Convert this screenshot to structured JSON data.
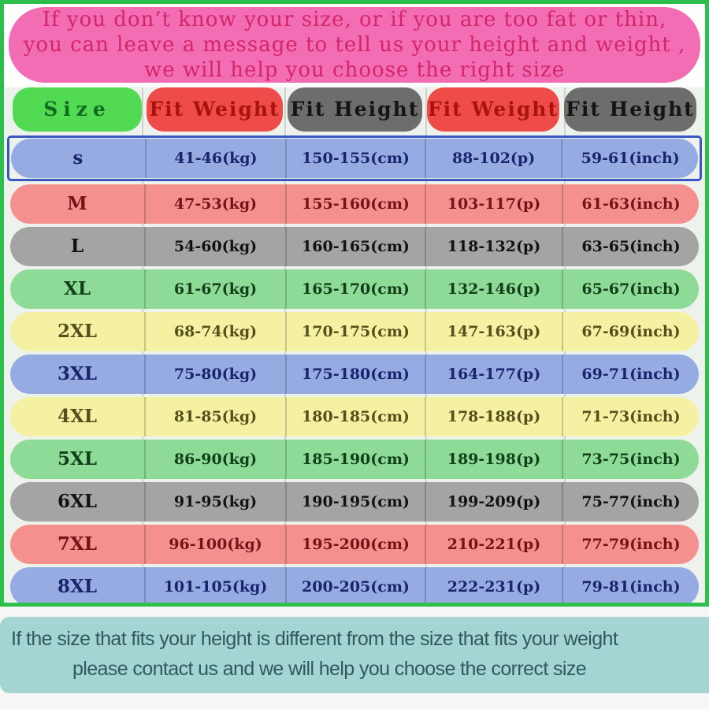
{
  "banner": {
    "lines": [
      "If you don’t know your size, or if you are too fat or thin,",
      "you can leave a message to tell us your height and weight ,",
      "we will help you choose the right size"
    ]
  },
  "table": {
    "headers": [
      {
        "label": "Size",
        "color": "green"
      },
      {
        "label": "Fit Weight",
        "color": "red"
      },
      {
        "label": "Fit Height",
        "color": "gray"
      },
      {
        "label": "Fit Weight",
        "color": "red"
      },
      {
        "label": "Fit Height",
        "color": "gray"
      }
    ],
    "selected_row": "s",
    "rows": [
      {
        "size": "s",
        "fit_weight_kg": "41-46(kg)",
        "fit_height_cm": "150-155(cm)",
        "fit_weight_p": "88-102(p)",
        "fit_height_inch": "59-61(inch)",
        "color": "blue"
      },
      {
        "size": "M",
        "fit_weight_kg": "47-53(kg)",
        "fit_height_cm": "155-160(cm)",
        "fit_weight_p": "103-117(p)",
        "fit_height_inch": "61-63(inch)",
        "color": "pink"
      },
      {
        "size": "L",
        "fit_weight_kg": "54-60(kg)",
        "fit_height_cm": "160-165(cm)",
        "fit_weight_p": "118-132(p)",
        "fit_height_inch": "63-65(inch)",
        "color": "gray"
      },
      {
        "size": "XL",
        "fit_weight_kg": "61-67(kg)",
        "fit_height_cm": "165-170(cm)",
        "fit_weight_p": "132-146(p)",
        "fit_height_inch": "65-67(inch)",
        "color": "green"
      },
      {
        "size": "2XL",
        "fit_weight_kg": "68-74(kg)",
        "fit_height_cm": "170-175(cm)",
        "fit_weight_p": "147-163(p)",
        "fit_height_inch": "67-69(inch)",
        "color": "yellow"
      },
      {
        "size": "3XL",
        "fit_weight_kg": "75-80(kg)",
        "fit_height_cm": "175-180(cm)",
        "fit_weight_p": "164-177(p)",
        "fit_height_inch": "69-71(inch)",
        "color": "blue"
      },
      {
        "size": "4XL",
        "fit_weight_kg": "81-85(kg)",
        "fit_height_cm": "180-185(cm)",
        "fit_weight_p": "178-188(p)",
        "fit_height_inch": "71-73(inch)",
        "color": "yellow"
      },
      {
        "size": "5XL",
        "fit_weight_kg": "86-90(kg)",
        "fit_height_cm": "185-190(cm)",
        "fit_weight_p": "189-198(p)",
        "fit_height_inch": "73-75(inch)",
        "color": "green"
      },
      {
        "size": "6XL",
        "fit_weight_kg": "91-95(kg)",
        "fit_height_cm": "190-195(cm)",
        "fit_weight_p": "199-209(p)",
        "fit_height_inch": "75-77(inch)",
        "color": "gray"
      },
      {
        "size": "7XL",
        "fit_weight_kg": "96-100(kg)",
        "fit_height_cm": "195-200(cm)",
        "fit_weight_p": "210-221(p)",
        "fit_height_inch": "77-79(inch)",
        "color": "pink"
      },
      {
        "size": "8XL",
        "fit_weight_kg": "101-105(kg)",
        "fit_height_cm": "200-205(cm)",
        "fit_weight_p": "222-231(p)",
        "fit_height_inch": "79-81(inch)",
        "color": "blue"
      }
    ]
  },
  "note": {
    "lines": [
      "If the size that fits your height is different from the size that fits your weight",
      "please contact us and we will help you choose the correct size"
    ]
  },
  "colors": {
    "frame_green": "#2cbf4b",
    "banner_bg": "#f36db4",
    "banner_text": "#d3256b",
    "header_green_bg": "#53da53",
    "header_red_bg": "#ef4c49",
    "header_gray_bg": "#6d6d6d",
    "row_blue_bg": "#97abe3",
    "row_pink_bg": "#f4918f",
    "row_gray_bg": "#a4a4a4",
    "row_green_bg": "#8edb97",
    "row_yellow_bg": "#f5f1a3",
    "selected_border": "#3a57c5",
    "note_bg": "#a5d5d2",
    "note_text": "#2e5a60"
  }
}
